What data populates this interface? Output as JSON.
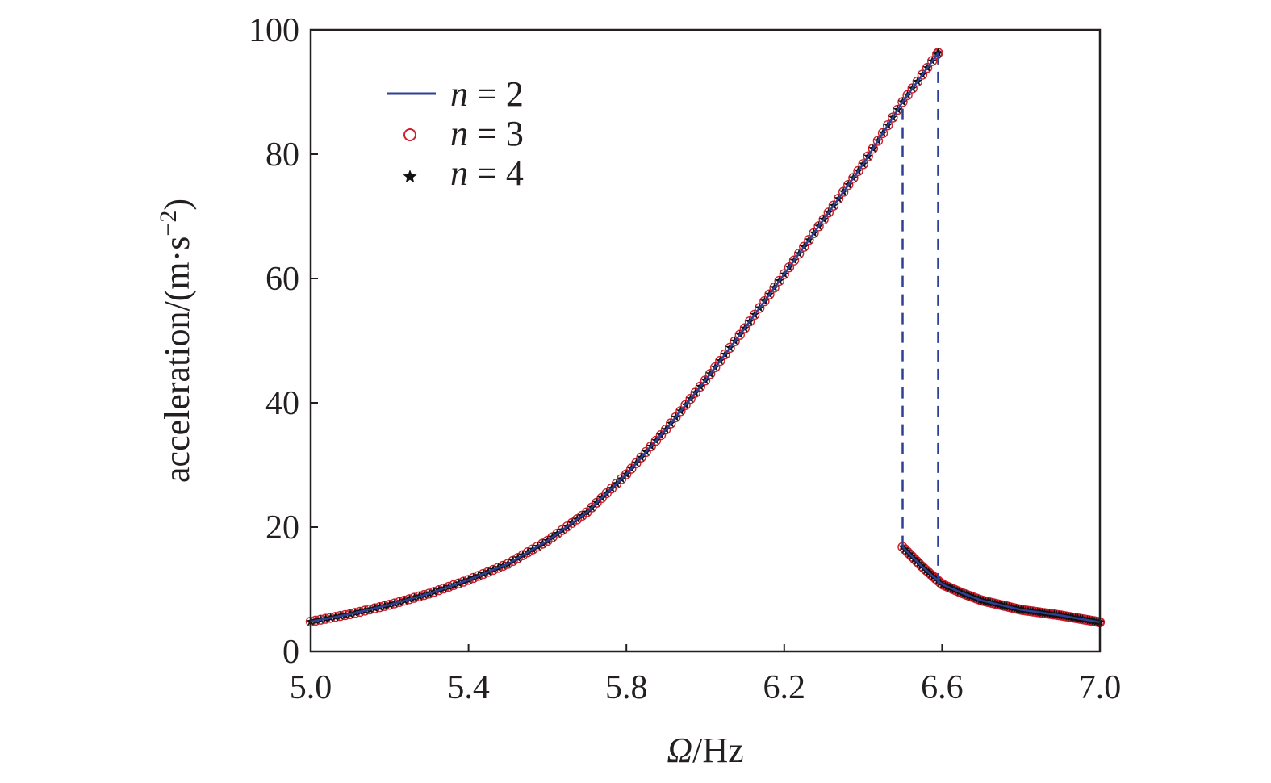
{
  "chart_data": {
    "type": "line",
    "xlabel": {
      "symbol": "Ω",
      "unit": "/Hz"
    },
    "ylabel": {
      "text": "acceleration/(m·s",
      "sup": "−2",
      "close": ")"
    },
    "xlim": [
      5.0,
      7.0
    ],
    "ylim": [
      0,
      100
    ],
    "x_ticks": [
      "5.0",
      "5.4",
      "5.8",
      "6.2",
      "6.6",
      "7.0"
    ],
    "y_ticks": [
      "0",
      "20",
      "40",
      "60",
      "80",
      "100"
    ],
    "grid": false,
    "legend_position": "top-left",
    "colors": {
      "n2": "#2e3f96",
      "n3": "#d0202e",
      "n4": "#111111",
      "axis": "#231f20"
    },
    "series": [
      {
        "name": "n = 2",
        "legend": {
          "var": "n",
          "rest": " = 2"
        },
        "style": "line",
        "color": "#2e3f96",
        "upper_branch": {
          "x": [
            5.0,
            5.1,
            5.2,
            5.3,
            5.4,
            5.5,
            5.6,
            5.7,
            5.8,
            5.9,
            6.0,
            6.1,
            6.2,
            6.3,
            6.4,
            6.5,
            6.59
          ],
          "y": [
            4.8,
            6.0,
            7.5,
            9.3,
            11.5,
            14.1,
            17.8,
            22.4,
            28.5,
            35.7,
            43.6,
            52.0,
            60.7,
            69.5,
            78.4,
            88.4,
            96.3
          ]
        },
        "lower_branch": {
          "x": [
            6.5,
            6.55,
            6.6,
            6.65,
            6.7,
            6.8,
            6.9,
            7.0
          ],
          "y": [
            16.8,
            13.6,
            10.8,
            9.4,
            8.2,
            6.7,
            5.8,
            4.7
          ]
        },
        "jump_lines": [
          {
            "x": 6.5,
            "y_from": 16.8,
            "y_to": 88.4
          },
          {
            "x": 6.59,
            "y_from": 10.8,
            "y_to": 96.3
          }
        ]
      },
      {
        "name": "n = 3",
        "legend": {
          "var": "n",
          "rest": " = 3"
        },
        "style": "open-circle-markers",
        "color": "#d0202e"
      },
      {
        "name": "n = 4",
        "legend": {
          "var": "n",
          "rest": " = 4"
        },
        "style": "star-markers",
        "color": "#111111"
      }
    ]
  }
}
